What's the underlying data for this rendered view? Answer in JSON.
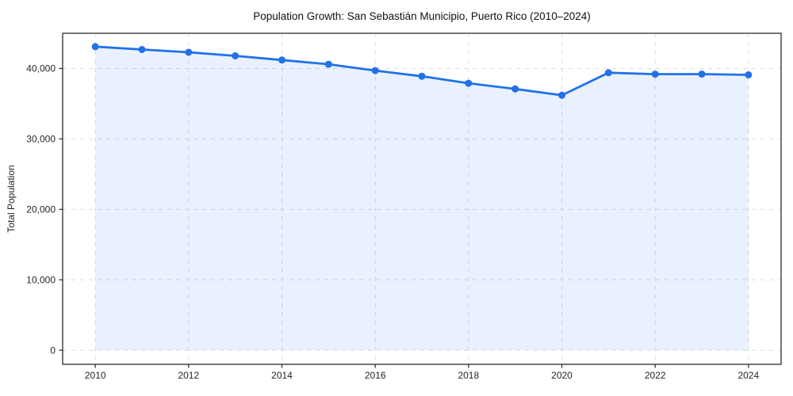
{
  "figure": {
    "background": "#ffffff",
    "frame_color": "#1a1a1a",
    "grid_color": "#dcdcdc"
  },
  "chart_data": {
    "type": "area",
    "title": "Population Growth: San Sebastián Municipio, Puerto Rico (2010–2024)",
    "xlabel": "",
    "ylabel": "Total Population",
    "x": [
      2010,
      2011,
      2012,
      2013,
      2014,
      2015,
      2016,
      2017,
      2018,
      2019,
      2020,
      2021,
      2022,
      2023,
      2024
    ],
    "series": [
      {
        "name": "Total Population",
        "color": "#2171e8",
        "fill_color": "rgba(33,113,232,0.10)",
        "marker": "circle",
        "values": [
          43100,
          42700,
          42300,
          41800,
          41200,
          40600,
          39700,
          38900,
          37900,
          37100,
          36200,
          39400,
          39200,
          39200,
          39100
        ]
      }
    ],
    "xticks": [
      2010,
      2012,
      2014,
      2016,
      2018,
      2020,
      2022,
      2024
    ],
    "yticks": [
      0,
      10000,
      20000,
      30000,
      40000
    ],
    "xlim": [
      2009.3,
      2024.7
    ],
    "ylim": [
      -2000,
      45000
    ],
    "grid": true,
    "grid_style": "dashed",
    "legend": false
  }
}
